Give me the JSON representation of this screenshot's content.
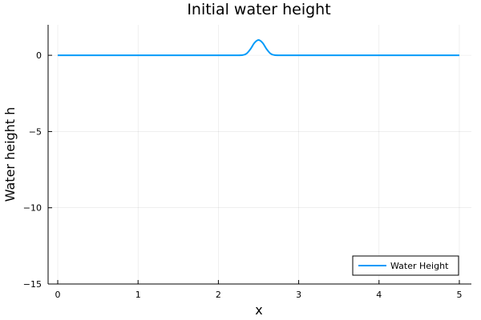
{
  "chart_data": {
    "type": "line",
    "title": "Initial water height",
    "xlabel": "x",
    "ylabel": "Water height h",
    "xlim": [
      -0.12,
      5.15
    ],
    "ylim": [
      -15,
      2
    ],
    "xticks": [
      0,
      1,
      2,
      3,
      4,
      5
    ],
    "xtick_labels": [
      "0",
      "1",
      "2",
      "3",
      "4",
      "5"
    ],
    "yticks": [
      0,
      -5,
      -10,
      -15
    ],
    "ytick_labels": [
      "0",
      "−5",
      "−10",
      "−15"
    ],
    "grid": true,
    "legend_position": "bottom-right",
    "series": [
      {
        "name": "Water Height",
        "color": "#009af9",
        "x": [
          0,
          0.5,
          1.0,
          1.5,
          2.0,
          2.2,
          2.3,
          2.35,
          2.4,
          2.45,
          2.5,
          2.55,
          2.6,
          2.65,
          2.7,
          2.8,
          3.0,
          3.5,
          4.0,
          4.5,
          5.0
        ],
        "y": [
          0,
          0,
          0,
          0,
          0,
          0,
          0.01,
          0.11,
          0.41,
          0.82,
          1.0,
          0.82,
          0.41,
          0.11,
          0.01,
          0,
          0,
          0,
          0,
          0,
          0
        ]
      }
    ]
  }
}
